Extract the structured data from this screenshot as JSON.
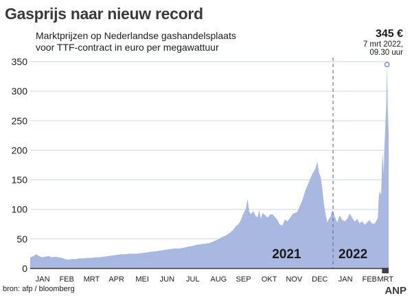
{
  "title": "Gasprijs naar nieuw record",
  "subtitle_line1": "Marktprijzen op Nederlandse gashandelsplaats",
  "subtitle_line2": "voor TTF-contract in euro per megawattuur",
  "peak": {
    "value": "345 €",
    "date_line1": "7 mrt 2022,",
    "date_line2": "09.30 uur"
  },
  "source": "bron: afp / bloomberg",
  "brand": "ANP",
  "colors": {
    "area": "#a9b8e0",
    "grid": "#cfd5e8",
    "axis": "#1a1a1a",
    "marker": "#7f95cc",
    "divider": "#6b7589"
  },
  "chart_data": {
    "type": "area",
    "ylim": [
      0,
      350
    ],
    "yticks": [
      0,
      50,
      100,
      150,
      200,
      250,
      300,
      350
    ],
    "xlim": [
      "2021-01-01",
      "2022-03-09"
    ],
    "year_divider": "2022-01-01",
    "year_labels": [
      {
        "label": "2021",
        "x": "2021-11-06"
      },
      {
        "label": "2022",
        "x": "2022-01-25"
      }
    ],
    "month_ticks": [
      {
        "label": "JAN",
        "x": "2021-01-16"
      },
      {
        "label": "FEB",
        "x": "2021-02-14"
      },
      {
        "label": "MRT",
        "x": "2021-03-16"
      },
      {
        "label": "APR",
        "x": "2021-04-15"
      },
      {
        "label": "MEI",
        "x": "2021-05-16"
      },
      {
        "label": "JUN",
        "x": "2021-06-15"
      },
      {
        "label": "JUL",
        "x": "2021-07-16"
      },
      {
        "label": "AUG",
        "x": "2021-08-16"
      },
      {
        "label": "SEP",
        "x": "2021-09-15"
      },
      {
        "label": "OKT",
        "x": "2021-10-16"
      },
      {
        "label": "NOV",
        "x": "2021-11-15"
      },
      {
        "label": "DEC",
        "x": "2021-12-16"
      },
      {
        "label": "JAN",
        "x": "2022-01-16"
      },
      {
        "label": "FEB",
        "x": "2022-02-14"
      },
      {
        "label": "MRT",
        "x": "2022-03-05"
      }
    ],
    "peak_point": {
      "x": "2022-03-07",
      "y": 345
    },
    "x": [
      "2021-01-01",
      "2021-01-05",
      "2021-01-08",
      "2021-01-12",
      "2021-01-15",
      "2021-01-19",
      "2021-01-23",
      "2021-01-27",
      "2021-01-31",
      "2021-02-04",
      "2021-02-08",
      "2021-02-12",
      "2021-02-16",
      "2021-02-20",
      "2021-02-25",
      "2021-03-01",
      "2021-03-06",
      "2021-03-11",
      "2021-03-16",
      "2021-03-21",
      "2021-03-26",
      "2021-03-31",
      "2021-04-05",
      "2021-04-10",
      "2021-04-15",
      "2021-04-20",
      "2021-04-25",
      "2021-04-30",
      "2021-05-05",
      "2021-05-10",
      "2021-05-15",
      "2021-05-20",
      "2021-05-25",
      "2021-05-31",
      "2021-06-05",
      "2021-06-10",
      "2021-06-15",
      "2021-06-20",
      "2021-06-25",
      "2021-06-30",
      "2021-07-05",
      "2021-07-10",
      "2021-07-15",
      "2021-07-20",
      "2021-07-25",
      "2021-07-31",
      "2021-08-05",
      "2021-08-10",
      "2021-08-15",
      "2021-08-20",
      "2021-08-25",
      "2021-08-31",
      "2021-09-03",
      "2021-09-06",
      "2021-09-09",
      "2021-09-12",
      "2021-09-14",
      "2021-09-16",
      "2021-09-18",
      "2021-09-20",
      "2021-09-22",
      "2021-09-24",
      "2021-09-27",
      "2021-09-30",
      "2021-10-02",
      "2021-10-04",
      "2021-10-06",
      "2021-10-08",
      "2021-10-11",
      "2021-10-14",
      "2021-10-17",
      "2021-10-20",
      "2021-10-23",
      "2021-10-26",
      "2021-10-29",
      "2021-11-01",
      "2021-11-04",
      "2021-11-07",
      "2021-11-10",
      "2021-11-13",
      "2021-11-16",
      "2021-11-19",
      "2021-11-22",
      "2021-11-25",
      "2021-11-28",
      "2021-12-01",
      "2021-12-04",
      "2021-12-07",
      "2021-12-09",
      "2021-12-11",
      "2021-12-13",
      "2021-12-15",
      "2021-12-17",
      "2021-12-19",
      "2021-12-21",
      "2021-12-23",
      "2021-12-25",
      "2021-12-27",
      "2021-12-29",
      "2021-12-31",
      "2022-01-03",
      "2022-01-06",
      "2022-01-09",
      "2022-01-12",
      "2022-01-15",
      "2022-01-18",
      "2022-01-21",
      "2022-01-24",
      "2022-01-27",
      "2022-01-30",
      "2022-02-02",
      "2022-02-05",
      "2022-02-08",
      "2022-02-11",
      "2022-02-14",
      "2022-02-17",
      "2022-02-20",
      "2022-02-22",
      "2022-02-24",
      "2022-02-25",
      "2022-02-26",
      "2022-02-28",
      "2022-03-01",
      "2022-03-02",
      "2022-03-03",
      "2022-03-04",
      "2022-03-05",
      "2022-03-06",
      "2022-03-07",
      "2022-03-08",
      "2022-03-09"
    ],
    "values": [
      19,
      21,
      24,
      21,
      19,
      20,
      21,
      19,
      20,
      19,
      18,
      16,
      15,
      16,
      16,
      17,
      17,
      18,
      18,
      19,
      19,
      20,
      21,
      22,
      23,
      24,
      24,
      25,
      25,
      25,
      26,
      27,
      28,
      29,
      30,
      31,
      32,
      33,
      34,
      34,
      35,
      37,
      38,
      40,
      41,
      42,
      43,
      46,
      49,
      53,
      56,
      62,
      66,
      72,
      75,
      82,
      90,
      96,
      102,
      118,
      96,
      92,
      97,
      88,
      87,
      98,
      84,
      94,
      90,
      86,
      91,
      92,
      87,
      82,
      74,
      73,
      83,
      80,
      85,
      92,
      94,
      96,
      106,
      115,
      130,
      140,
      150,
      160,
      165,
      170,
      181,
      162,
      155,
      136,
      108,
      92,
      78,
      84,
      88,
      99,
      88,
      78,
      90,
      82,
      80,
      84,
      93,
      86,
      79,
      84,
      76,
      80,
      74,
      78,
      82,
      76,
      76,
      80,
      86,
      118,
      131,
      125,
      175,
      195,
      160,
      210,
      240,
      275,
      345,
      265,
      230
    ]
  }
}
